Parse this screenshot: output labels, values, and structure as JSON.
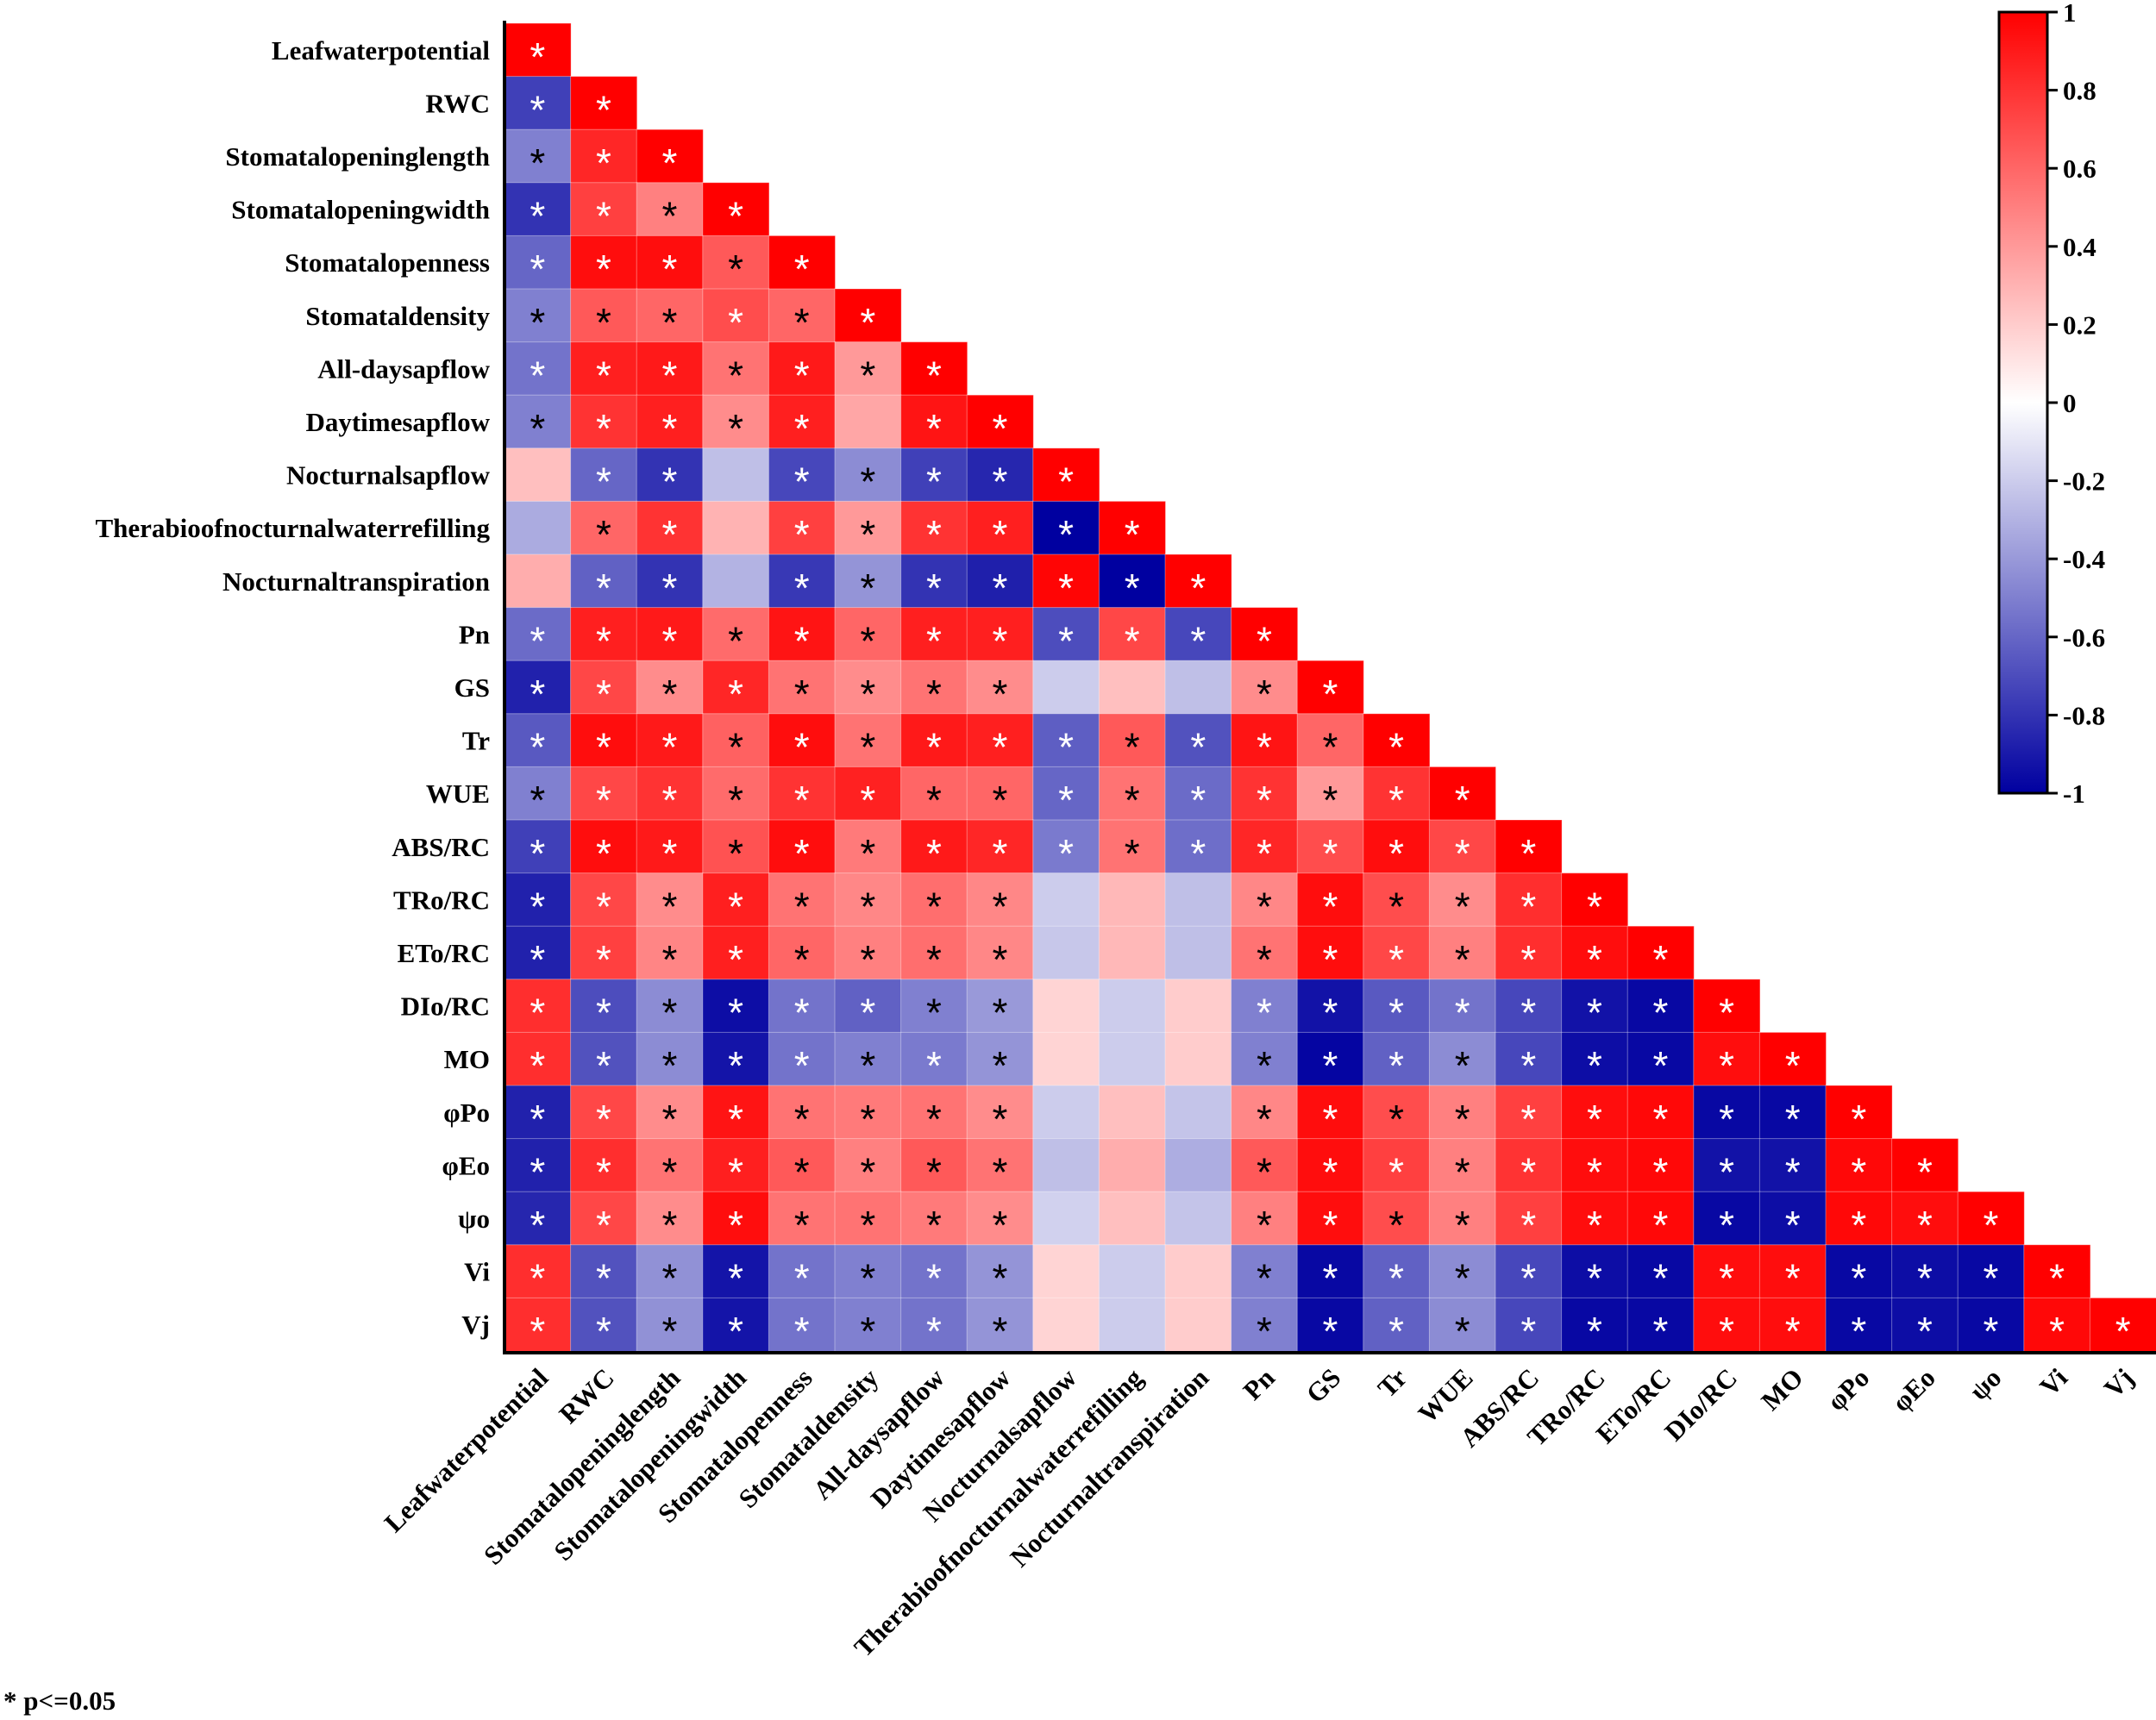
{
  "chart_data": {
    "type": "heatmap",
    "title": "",
    "variables": [
      "Leafwaterpotential",
      "RWC",
      "Stomatalopeninglength",
      "Stomatalopeningwidth",
      "Stomatalopenness",
      "Stomataldensity",
      "All-daysapflow",
      "Daytimesapflow",
      "Nocturnalsapflow",
      "Therabioofnocturnalwaterrefilling",
      "Nocturnaltranspiration",
      "Pn",
      "GS",
      "Tr",
      "WUE",
      "ABS/RC",
      "TRo/RC",
      "ETo/RC",
      "DIo/RC",
      "MO",
      "φPo",
      "φEo",
      "ψo",
      "Vi",
      "Vj"
    ],
    "matrix_lower": [
      [
        1
      ],
      [
        -0.75,
        1
      ],
      [
        -0.5,
        0.85,
        1
      ],
      [
        -0.8,
        0.75,
        0.5,
        1
      ],
      [
        -0.6,
        0.95,
        0.95,
        0.65,
        1
      ],
      [
        -0.5,
        0.65,
        0.6,
        0.7,
        0.6,
        1
      ],
      [
        -0.55,
        0.88,
        0.9,
        0.55,
        0.9,
        0.4,
        1
      ],
      [
        -0.5,
        0.8,
        0.88,
        0.45,
        0.88,
        0.35,
        0.92,
        1
      ],
      [
        0.25,
        -0.6,
        -0.8,
        -0.25,
        -0.72,
        -0.45,
        -0.75,
        -0.85,
        1
      ],
      [
        -0.33,
        0.6,
        0.8,
        0.3,
        0.75,
        0.4,
        0.8,
        0.88,
        -1,
        1
      ],
      [
        0.32,
        -0.62,
        -0.8,
        -0.3,
        -0.78,
        -0.42,
        -0.8,
        -0.88,
        0.98,
        -1,
        1
      ],
      [
        -0.58,
        0.88,
        0.9,
        0.58,
        0.92,
        0.6,
        0.88,
        0.88,
        -0.7,
        0.72,
        -0.72,
        1
      ],
      [
        -0.87,
        0.72,
        0.45,
        0.85,
        0.55,
        0.45,
        0.55,
        0.45,
        -0.2,
        0.25,
        -0.25,
        0.45,
        1
      ],
      [
        -0.65,
        0.95,
        0.9,
        0.62,
        0.95,
        0.55,
        0.9,
        0.88,
        -0.63,
        0.65,
        -0.68,
        0.92,
        0.6,
        1
      ],
      [
        -0.5,
        0.72,
        0.8,
        0.58,
        0.8,
        0.87,
        0.6,
        0.6,
        -0.6,
        0.55,
        -0.58,
        0.8,
        0.4,
        0.8,
        1
      ],
      [
        -0.75,
        0.95,
        0.9,
        0.68,
        0.95,
        0.52,
        0.9,
        0.85,
        -0.52,
        0.55,
        -0.57,
        0.85,
        0.7,
        0.95,
        0.72,
        1
      ],
      [
        -0.87,
        0.72,
        0.45,
        0.88,
        0.55,
        0.47,
        0.57,
        0.47,
        -0.2,
        0.28,
        -0.25,
        0.47,
        0.95,
        0.7,
        0.45,
        0.82,
        1
      ],
      [
        -0.87,
        0.75,
        0.48,
        0.88,
        0.6,
        0.5,
        0.57,
        0.47,
        -0.22,
        0.28,
        -0.25,
        0.55,
        0.95,
        0.72,
        0.5,
        0.82,
        0.95,
        1
      ],
      [
        0.82,
        -0.7,
        -0.45,
        -0.95,
        -0.55,
        -0.62,
        -0.5,
        -0.4,
        0.17,
        -0.2,
        0.2,
        -0.5,
        -0.93,
        -0.65,
        -0.55,
        -0.72,
        -0.93,
        -0.97,
        1
      ],
      [
        0.82,
        -0.68,
        -0.45,
        -0.92,
        -0.55,
        -0.5,
        -0.52,
        -0.42,
        0.17,
        -0.2,
        0.2,
        -0.5,
        -0.98,
        -0.62,
        -0.45,
        -0.72,
        -0.95,
        -0.97,
        0.95,
        1
      ],
      [
        -0.87,
        0.72,
        0.45,
        0.92,
        0.55,
        0.52,
        0.55,
        0.45,
        -0.2,
        0.25,
        -0.23,
        0.47,
        0.95,
        0.7,
        0.5,
        0.75,
        0.95,
        0.97,
        -0.97,
        -0.97,
        1
      ],
      [
        -0.87,
        0.82,
        0.55,
        0.88,
        0.65,
        0.5,
        0.65,
        0.55,
        -0.25,
        0.32,
        -0.32,
        0.65,
        0.95,
        0.75,
        0.5,
        0.8,
        0.95,
        0.97,
        -0.93,
        -0.93,
        0.97,
        1
      ],
      [
        -0.85,
        0.72,
        0.45,
        0.95,
        0.55,
        0.55,
        0.52,
        0.45,
        -0.18,
        0.25,
        -0.23,
        0.5,
        0.95,
        0.7,
        0.5,
        0.75,
        0.95,
        0.97,
        -0.97,
        -0.95,
        0.97,
        0.95,
        1
      ],
      [
        0.82,
        -0.68,
        -0.43,
        -0.92,
        -0.55,
        -0.5,
        -0.55,
        -0.42,
        0.17,
        -0.2,
        0.2,
        -0.5,
        -0.97,
        -0.62,
        -0.45,
        -0.72,
        -0.95,
        -0.97,
        0.95,
        0.95,
        -0.97,
        -0.95,
        -0.97,
        1
      ],
      [
        0.82,
        -0.68,
        -0.43,
        -0.92,
        -0.55,
        -0.5,
        -0.55,
        -0.42,
        0.17,
        -0.2,
        0.2,
        -0.5,
        -0.97,
        -0.62,
        -0.45,
        -0.72,
        -0.97,
        -0.97,
        0.95,
        0.95,
        -0.97,
        -0.95,
        -0.97,
        0.97,
        1
      ]
    ],
    "significance_marks": [
      "w",
      "ww",
      "bww",
      "wwbw",
      "wwwbw",
      "bbbwbw",
      "wwwbwbw",
      "bwwbw-ww",
      "-ww-wbwww",
      "-bw-wbwwww",
      "-ww-wbwwwww",
      "wwwbwbwwwwww",
      "wwbwbbbb---bw",
      "wwwbwbwwwbwwbw",
      "bwwbwwbbwbwwbww",
      "wwwbwbwwwbwwwwww",
      "wwbwbbbb---bwbbww",
      "wwbwbbbb---bwwbwww",
      "wwbwwwbb---wwwwwwww",
      "wwbwwbwb---bwwbwwwww",
      "wwbwbbbb---bwbbwwwwww",
      "wwbwbbbb---bwwbwwwwwww",
      "wwbwbbbb---bwbbwwwwwwww",
      "wwbwwbwb---bwwbwwwwwwwww",
      "wwbwwbwb---bwwbwwwwwwwwww"
    ],
    "star_symbol": "*",
    "colorbar": {
      "ticks": [
        "1",
        "0.8",
        "0.6",
        "0.4",
        "0.2",
        "0",
        "-0.2",
        "-0.4",
        "-0.6",
        "-0.8",
        "-1"
      ],
      "range": [
        -1,
        1
      ],
      "placement": "top-right"
    },
    "colors": {
      "positive": "#ff0000",
      "zero": "#ffffff",
      "negative": "#0000a0"
    },
    "footnote": "* p<=0.05"
  }
}
